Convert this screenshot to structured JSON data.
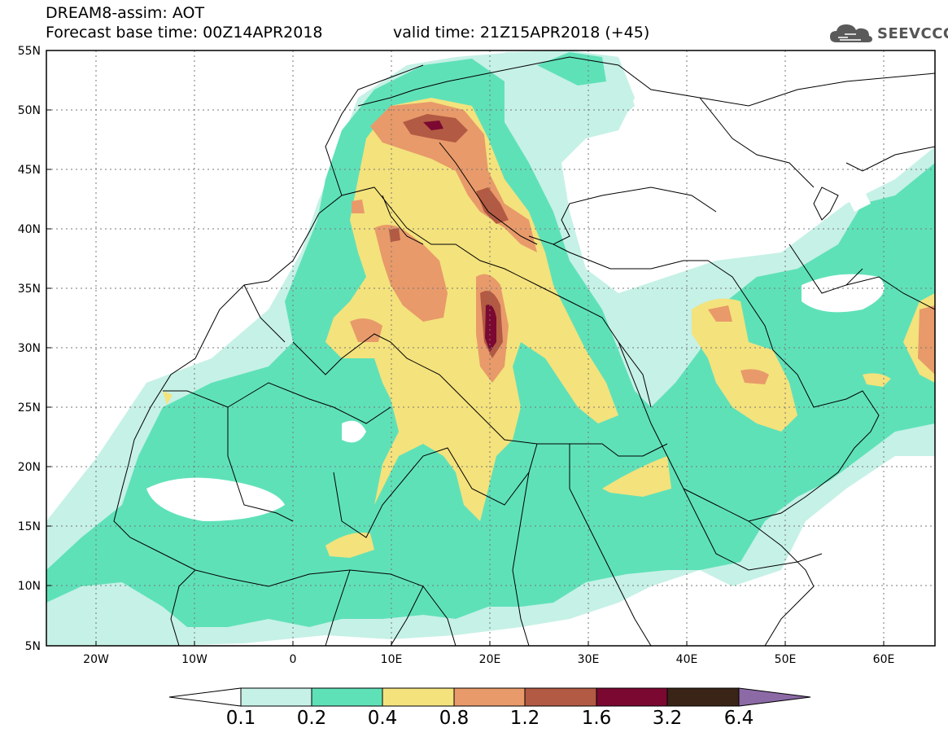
{
  "header": {
    "title": "DREAM8-assim: AOT",
    "base_time": "Forecast base time: 00Z14APR2018",
    "valid_time": "valid time: 21Z15APR2018 (+45)"
  },
  "logo": {
    "text": "SEEVCCC",
    "icon": "cloud-icon"
  },
  "map": {
    "lat_labels": [
      "55N",
      "50N",
      "45N",
      "40N",
      "35N",
      "30N",
      "25N",
      "20N",
      "15N",
      "10N",
      "5N"
    ],
    "lon_labels": [
      "20W",
      "10W",
      "0",
      "10E",
      "20E",
      "30E",
      "40E",
      "50E",
      "60E"
    ]
  },
  "colorbar": {
    "labels": [
      "0.1",
      "0.2",
      "0.4",
      "0.8",
      "1.2",
      "1.6",
      "3.2",
      "6.4"
    ],
    "colors": [
      "#ffffff",
      "#c6f1e6",
      "#5fe1b8",
      "#f4e27c",
      "#e89a6a",
      "#b25a43",
      "#7b0831",
      "#3a2417",
      "#8c6aa6"
    ]
  }
}
